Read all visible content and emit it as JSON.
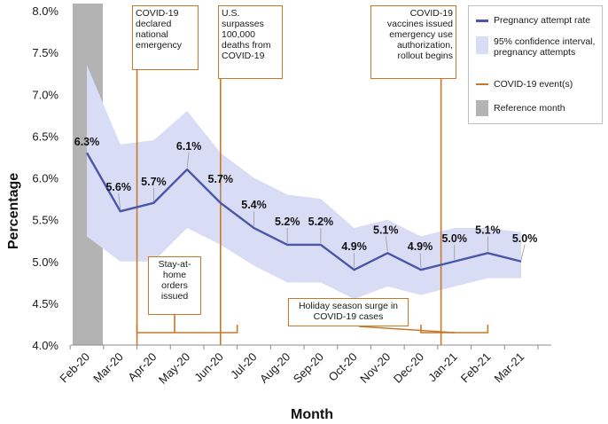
{
  "chart_data": {
    "type": "line",
    "ylabel": "Percentage",
    "xlabel": "Month",
    "ylim": [
      4.0,
      8.0
    ],
    "yticks": [
      "4.0%",
      "4.5%",
      "5.0%",
      "5.5%",
      "6.0%",
      "6.5%",
      "7.0%",
      "7.5%",
      "8.0%"
    ],
    "categories": [
      "Feb-20",
      "Mar-20",
      "Apr-20",
      "May-20",
      "Jun-20",
      "Jul-20",
      "Aug-20",
      "Sep-20",
      "Oct-20",
      "Nov-20",
      "Dec-20",
      "Jan-21",
      "Feb-21",
      "Mar-21"
    ],
    "series": [
      {
        "name": "Pregnancy attempt rate",
        "values": [
          6.3,
          5.6,
          5.7,
          6.1,
          5.7,
          5.4,
          5.2,
          5.2,
          4.9,
          5.1,
          4.9,
          5.0,
          5.1,
          5.0
        ],
        "labels": [
          "6.3%",
          "5.6%",
          "5.7%",
          "6.1%",
          "5.7%",
          "5.4%",
          "5.2%",
          "5.2%",
          "4.9%",
          "5.1%",
          "4.9%",
          "5.0%",
          "5.1%",
          "5.0%"
        ],
        "color": "#4a56a6"
      },
      {
        "name": "95% confidence interval, pregnancy attempts",
        "lower": [
          5.3,
          5.0,
          5.0,
          5.4,
          5.2,
          4.95,
          4.75,
          4.75,
          4.55,
          4.7,
          4.6,
          4.7,
          4.8,
          4.8
        ],
        "upper": [
          7.35,
          6.4,
          6.45,
          6.8,
          6.3,
          6.0,
          5.8,
          5.75,
          5.4,
          5.5,
          5.3,
          5.4,
          5.4,
          5.35
        ],
        "color": "#d9dcf5"
      }
    ],
    "reference_month": "Feb-20",
    "events": [
      {
        "label": "COVID-19 declared national emergency",
        "at_month_index": 1.5
      },
      {
        "label": "U.S. surpasses 100,000 deaths from COVID-19",
        "at_month_index": 4.0
      },
      {
        "label": "COVID-19 vaccines issued emergency use authorization, rollout begins",
        "at_month_index": 10.6
      }
    ],
    "periods": [
      {
        "label": "Stay-at-home orders issued",
        "from_index": 1.5,
        "to_index": 4.5
      },
      {
        "label": "Holiday season surge in COVID-19 cases",
        "from_index": 10.0,
        "to_index": 12.0
      }
    ],
    "event_color": "#c8782a",
    "reference_color": "#b3b3b3"
  },
  "annotations": {
    "emergency": [
      "COVID-19",
      "declared",
      "national",
      "emergency"
    ],
    "deaths": [
      "U.S.",
      "surpasses",
      "100,000",
      "deaths from",
      "COVID-19"
    ],
    "vaccines": [
      "COVID-19",
      "vaccines issued",
      "emergency use",
      "authorization,",
      "rollout begins"
    ],
    "stay_home": [
      "Stay-at-",
      "home",
      "orders",
      "issued"
    ],
    "holiday": [
      "Holiday season surge in",
      "COVID-19 cases"
    ]
  },
  "legend": {
    "rate": "Pregnancy attempt rate",
    "ci": [
      "95% confidence interval,",
      "pregnancy attempts"
    ],
    "event": "COVID-19 event(s)",
    "reference": "Reference month"
  }
}
